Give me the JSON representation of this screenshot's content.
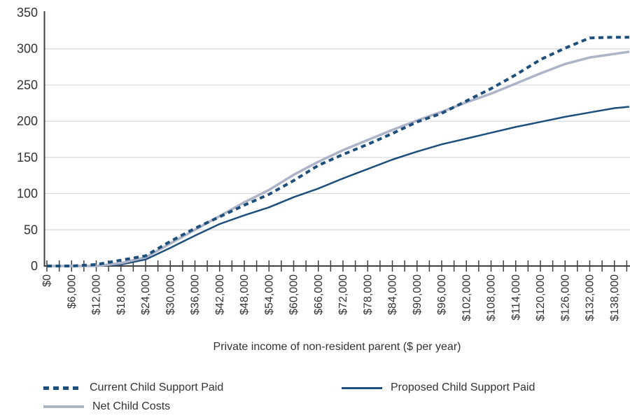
{
  "chart_data": {
    "type": "line",
    "title": "",
    "xlabel": "Private income of non-resident parent ($ per year)",
    "ylabel": "",
    "ylim": [
      0,
      350
    ],
    "y_tick_step": 50,
    "y_ticks": [
      "0",
      "50",
      "100",
      "150",
      "200",
      "250",
      "300",
      "350"
    ],
    "xlim": [
      0,
      141600
    ],
    "x_label_step": 6000,
    "x_minor_tick_step": 3000,
    "x_tick_labels": [
      "$0",
      "$6,000",
      "$12,000",
      "$18,000",
      "$24,000",
      "$30,000",
      "$36,000",
      "$42,000",
      "$48,000",
      "$54,000",
      "$60,000",
      "$66,000",
      "$72,000",
      "$78,000",
      "$84,000",
      "$90,000",
      "$96,000",
      "$102,000",
      "$108,000",
      "$114,000",
      "$120,000",
      "$126,000",
      "$132,000",
      "$138,000"
    ],
    "x": [
      0,
      6000,
      12000,
      18000,
      24000,
      30000,
      36000,
      42000,
      48000,
      54000,
      60000,
      66000,
      72000,
      78000,
      84000,
      90000,
      96000,
      102000,
      108000,
      114000,
      120000,
      126000,
      132000,
      138000,
      141600
    ],
    "grid": "horizontal",
    "legend_position": "bottom",
    "series": [
      {
        "name": "Current Child Support Paid",
        "style": "dashed",
        "color": "#1d4f7c",
        "values": [
          0,
          0,
          2,
          8,
          14,
          34,
          52,
          68,
          84,
          99,
          118,
          139,
          154,
          168,
          183,
          199,
          211,
          228,
          245,
          264,
          285,
          301,
          315,
          316,
          316
        ]
      },
      {
        "name": "Net Child Costs",
        "style": "solid",
        "color": "#adb4c8",
        "values": [
          0,
          0,
          0,
          4,
          12,
          31,
          50,
          69,
          88,
          105,
          126,
          144,
          160,
          174,
          188,
          201,
          213,
          226,
          238,
          252,
          266,
          279,
          288,
          293,
          296
        ]
      },
      {
        "name": "Proposed Child Support Paid",
        "style": "solid",
        "color": "#1d4f7c",
        "values": [
          0,
          0,
          0,
          2,
          9,
          25,
          42,
          58,
          70,
          81,
          95,
          107,
          121,
          134,
          147,
          158,
          168,
          176,
          184,
          192,
          199,
          206,
          212,
          218,
          220
        ]
      }
    ],
    "colors": {
      "axis": "#404040",
      "gridline": "#d9d9d9",
      "text": "#333333",
      "navy": "#1d4f7c",
      "light_line": "#adb4c8"
    }
  }
}
